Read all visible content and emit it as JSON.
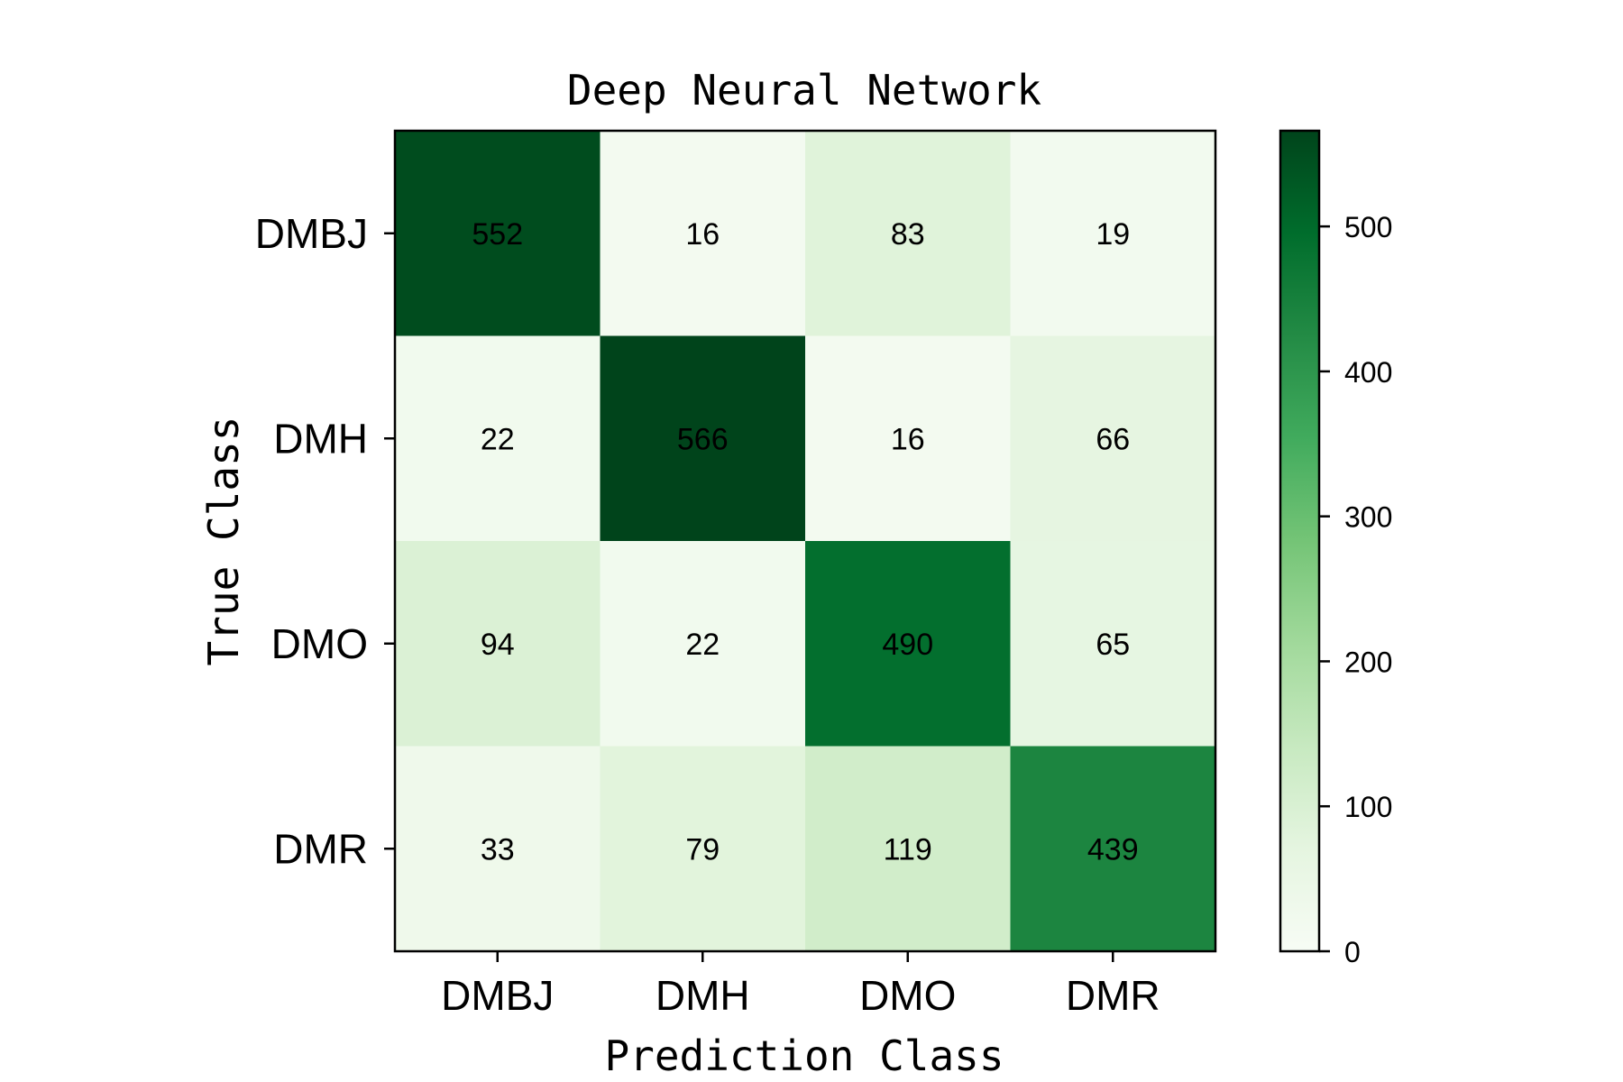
{
  "chart_data": {
    "type": "heatmap",
    "title": "Deep Neural Network",
    "xlabel": "Prediction Class",
    "ylabel": "True Class",
    "x_categories": [
      "DMBJ",
      "DMH",
      "DMO",
      "DMR"
    ],
    "y_categories": [
      "DMBJ",
      "DMH",
      "DMO",
      "DMR"
    ],
    "values": [
      [
        552,
        16,
        83,
        19
      ],
      [
        22,
        566,
        16,
        66
      ],
      [
        94,
        22,
        490,
        65
      ],
      [
        33,
        79,
        119,
        439
      ]
    ],
    "colorbar": {
      "min": 0,
      "max": 566,
      "ticks": [
        0,
        100,
        200,
        300,
        400,
        500
      ],
      "colormap": "Greens"
    }
  }
}
